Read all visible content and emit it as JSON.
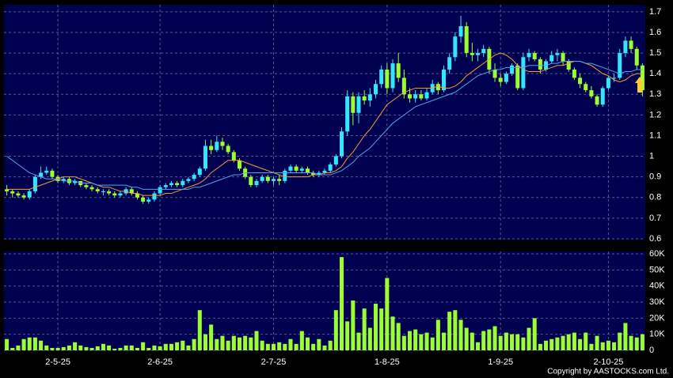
{
  "chart_data": {
    "type": "candlestick",
    "up_color": "#33e6ff",
    "down_color": "#99ff33",
    "volume_color": "#99ff33",
    "panel_color": "#000050",
    "grid": true,
    "xlim": [
      -0.5,
      112.5
    ],
    "xticks": [
      {
        "value": 9,
        "label": "2-5-25"
      },
      {
        "value": 27,
        "label": "2-6-25"
      },
      {
        "value": 47,
        "label": "2-7-25"
      },
      {
        "value": 67,
        "label": "1-8-25"
      },
      {
        "value": 87,
        "label": "1-9-25"
      },
      {
        "value": 106,
        "label": "2-10-25"
      }
    ],
    "ylim": [
      0.596,
      1.734
    ],
    "yticks": [
      0.6,
      0.7,
      0.8,
      0.9,
      1,
      1.1,
      1.2,
      1.3,
      1.4,
      1.5,
      1.6,
      1.7
    ],
    "y2lim": [
      0,
      61500
    ],
    "y2ticks": [
      0,
      {
        "value": 10000,
        "label": "10K"
      },
      {
        "value": 20000,
        "label": "20K"
      },
      {
        "value": 30000,
        "label": "30K"
      },
      {
        "value": 40000,
        "label": "40K"
      },
      {
        "value": 50000,
        "label": "50K"
      },
      {
        "value": 60000,
        "label": "60K"
      }
    ],
    "ohlc": [
      [
        0.84,
        0.86,
        0.81,
        0.83
      ],
      [
        0.83,
        0.84,
        0.8,
        0.82
      ],
      [
        0.82,
        0.83,
        0.8,
        0.81
      ],
      [
        0.81,
        0.82,
        0.79,
        0.8
      ],
      [
        0.8,
        0.84,
        0.79,
        0.83
      ],
      [
        0.83,
        0.91,
        0.82,
        0.9
      ],
      [
        0.9,
        0.95,
        0.89,
        0.92
      ],
      [
        0.92,
        0.95,
        0.91,
        0.93
      ],
      [
        0.93,
        0.94,
        0.89,
        0.9
      ],
      [
        0.9,
        0.91,
        0.87,
        0.88
      ],
      [
        0.88,
        0.9,
        0.87,
        0.89
      ],
      [
        0.89,
        0.9,
        0.86,
        0.87
      ],
      [
        0.87,
        0.89,
        0.86,
        0.88
      ],
      [
        0.88,
        0.88,
        0.85,
        0.86
      ],
      [
        0.86,
        0.87,
        0.84,
        0.85
      ],
      [
        0.85,
        0.86,
        0.83,
        0.84
      ],
      [
        0.84,
        0.85,
        0.82,
        0.83
      ],
      [
        0.83,
        0.84,
        0.81,
        0.83
      ],
      [
        0.83,
        0.84,
        0.81,
        0.82
      ],
      [
        0.82,
        0.83,
        0.8,
        0.81
      ],
      [
        0.81,
        0.83,
        0.8,
        0.82
      ],
      [
        0.82,
        0.85,
        0.81,
        0.84
      ],
      [
        0.84,
        0.85,
        0.81,
        0.82
      ],
      [
        0.82,
        0.83,
        0.79,
        0.8
      ],
      [
        0.8,
        0.81,
        0.77,
        0.78
      ],
      [
        0.78,
        0.8,
        0.77,
        0.79
      ],
      [
        0.79,
        0.83,
        0.78,
        0.82
      ],
      [
        0.82,
        0.86,
        0.81,
        0.85
      ],
      [
        0.85,
        0.87,
        0.84,
        0.86
      ],
      [
        0.86,
        0.88,
        0.85,
        0.87
      ],
      [
        0.87,
        0.88,
        0.85,
        0.86
      ],
      [
        0.86,
        0.89,
        0.85,
        0.88
      ],
      [
        0.88,
        0.9,
        0.87,
        0.89
      ],
      [
        0.89,
        0.92,
        0.88,
        0.91
      ],
      [
        0.91,
        0.95,
        0.9,
        0.94
      ],
      [
        0.94,
        1.08,
        0.93,
        1.05
      ],
      [
        1.05,
        1.08,
        1.01,
        1.03
      ],
      [
        1.03,
        1.1,
        1.02,
        1.07
      ],
      [
        1.07,
        1.09,
        1.03,
        1.05
      ],
      [
        1.05,
        1.06,
        1.01,
        1.02
      ],
      [
        1.02,
        1.03,
        0.97,
        0.98
      ],
      [
        0.98,
        0.99,
        0.93,
        0.94
      ],
      [
        0.94,
        0.95,
        0.89,
        0.9
      ],
      [
        0.9,
        0.91,
        0.85,
        0.86
      ],
      [
        0.86,
        0.89,
        0.85,
        0.88
      ],
      [
        0.88,
        0.91,
        0.87,
        0.9
      ],
      [
        0.9,
        0.91,
        0.87,
        0.88
      ],
      [
        0.88,
        0.9,
        0.86,
        0.89
      ],
      [
        0.89,
        0.91,
        0.86,
        0.88
      ],
      [
        0.88,
        0.94,
        0.87,
        0.93
      ],
      [
        0.93,
        0.96,
        0.92,
        0.95
      ],
      [
        0.95,
        0.96,
        0.92,
        0.93
      ],
      [
        0.93,
        0.95,
        0.92,
        0.94
      ],
      [
        0.94,
        0.95,
        0.91,
        0.92
      ],
      [
        0.92,
        0.93,
        0.9,
        0.91
      ],
      [
        0.91,
        0.93,
        0.9,
        0.92
      ],
      [
        0.92,
        0.94,
        0.91,
        0.93
      ],
      [
        0.93,
        0.97,
        0.92,
        0.96
      ],
      [
        0.96,
        1.01,
        0.95,
        1.0
      ],
      [
        1.0,
        1.14,
        0.99,
        1.12
      ],
      [
        1.12,
        1.32,
        1.1,
        1.29
      ],
      [
        1.29,
        1.31,
        1.15,
        1.21
      ],
      [
        1.21,
        1.31,
        1.16,
        1.29
      ],
      [
        1.29,
        1.32,
        1.25,
        1.27
      ],
      [
        1.27,
        1.33,
        1.24,
        1.3
      ],
      [
        1.3,
        1.37,
        1.28,
        1.35
      ],
      [
        1.35,
        1.44,
        1.33,
        1.42
      ],
      [
        1.42,
        1.45,
        1.3,
        1.33
      ],
      [
        1.33,
        1.47,
        1.31,
        1.45
      ],
      [
        1.45,
        1.5,
        1.36,
        1.38
      ],
      [
        1.38,
        1.42,
        1.28,
        1.3
      ],
      [
        1.3,
        1.33,
        1.26,
        1.28
      ],
      [
        1.28,
        1.32,
        1.26,
        1.3
      ],
      [
        1.3,
        1.32,
        1.27,
        1.28
      ],
      [
        1.28,
        1.33,
        1.27,
        1.31
      ],
      [
        1.31,
        1.37,
        1.3,
        1.35
      ],
      [
        1.35,
        1.36,
        1.3,
        1.32
      ],
      [
        1.32,
        1.44,
        1.31,
        1.42
      ],
      [
        1.42,
        1.5,
        1.4,
        1.48
      ],
      [
        1.48,
        1.6,
        1.46,
        1.58
      ],
      [
        1.58,
        1.68,
        1.55,
        1.63
      ],
      [
        1.63,
        1.65,
        1.48,
        1.5
      ],
      [
        1.5,
        1.55,
        1.46,
        1.49
      ],
      [
        1.49,
        1.52,
        1.46,
        1.5
      ],
      [
        1.5,
        1.54,
        1.48,
        1.52
      ],
      [
        1.52,
        1.53,
        1.4,
        1.42
      ],
      [
        1.42,
        1.45,
        1.36,
        1.38
      ],
      [
        1.38,
        1.4,
        1.34,
        1.36
      ],
      [
        1.36,
        1.41,
        1.35,
        1.4
      ],
      [
        1.4,
        1.45,
        1.39,
        1.44
      ],
      [
        1.44,
        1.45,
        1.32,
        1.33
      ],
      [
        1.33,
        1.5,
        1.32,
        1.48
      ],
      [
        1.48,
        1.52,
        1.46,
        1.5
      ],
      [
        1.5,
        1.51,
        1.46,
        1.47
      ],
      [
        1.47,
        1.48,
        1.4,
        1.42
      ],
      [
        1.42,
        1.47,
        1.41,
        1.46
      ],
      [
        1.46,
        1.51,
        1.45,
        1.49
      ],
      [
        1.49,
        1.52,
        1.46,
        1.5
      ],
      [
        1.5,
        1.51,
        1.44,
        1.46
      ],
      [
        1.46,
        1.47,
        1.41,
        1.42
      ],
      [
        1.42,
        1.43,
        1.37,
        1.38
      ],
      [
        1.38,
        1.4,
        1.33,
        1.35
      ],
      [
        1.35,
        1.36,
        1.31,
        1.32
      ],
      [
        1.32,
        1.34,
        1.28,
        1.29
      ],
      [
        1.29,
        1.3,
        1.24,
        1.25
      ],
      [
        1.25,
        1.34,
        1.24,
        1.33
      ],
      [
        1.33,
        1.39,
        1.32,
        1.38
      ],
      [
        1.38,
        1.4,
        1.36,
        1.38
      ],
      [
        1.38,
        1.52,
        1.37,
        1.5
      ],
      [
        1.5,
        1.58,
        1.48,
        1.56
      ],
      [
        1.56,
        1.58,
        1.5,
        1.52
      ],
      [
        1.52,
        1.53,
        1.42,
        1.44
      ],
      [
        1.44,
        1.45,
        1.29,
        1.32
      ]
    ],
    "volume": [
      7000,
      1500,
      3000,
      7000,
      8000,
      8000,
      6000,
      3000,
      1500,
      1500,
      2000,
      3000,
      5000,
      3000,
      2000,
      1500,
      2500,
      4000,
      3000,
      1000,
      1500,
      3000,
      3000,
      1500,
      5000,
      1500,
      3000,
      2500,
      4000,
      4000,
      5000,
      6000,
      3000,
      7000,
      25000,
      10000,
      16000,
      7000,
      9000,
      6000,
      9000,
      8000,
      9000,
      8000,
      12000,
      6000,
      4000,
      4000,
      5000,
      4000,
      7000,
      4000,
      12000,
      8000,
      4000,
      7000,
      3000,
      6000,
      25000,
      58000,
      18000,
      31000,
      11000,
      26000,
      14000,
      29000,
      26000,
      45000,
      21000,
      17000,
      9000,
      12000,
      13000,
      10000,
      11000,
      8000,
      19000,
      11000,
      24000,
      25000,
      19000,
      14000,
      11000,
      5000,
      12000,
      13000,
      15000,
      9000,
      11000,
      10000,
      10000,
      8000,
      14000,
      20000,
      4000,
      6000,
      7000,
      8000,
      9000,
      10000,
      11000,
      7000,
      11000,
      4000,
      9000,
      5000,
      6000,
      5000,
      11000,
      17000,
      9000,
      8000,
      10000
    ],
    "lines": [
      {
        "color": "#ff9933",
        "values": [
          0.84,
          0.84,
          0.84,
          0.84,
          0.84,
          0.85,
          0.86,
          0.87,
          0.88,
          0.89,
          0.9,
          0.9,
          0.9,
          0.89,
          0.88,
          0.87,
          0.86,
          0.85,
          0.85,
          0.84,
          0.83,
          0.83,
          0.82,
          0.82,
          0.81,
          0.81,
          0.81,
          0.81,
          0.82,
          0.82,
          0.83,
          0.84,
          0.85,
          0.86,
          0.87,
          0.89,
          0.92,
          0.94,
          0.96,
          0.98,
          0.98,
          0.98,
          0.97,
          0.96,
          0.95,
          0.94,
          0.93,
          0.92,
          0.91,
          0.9,
          0.9,
          0.9,
          0.9,
          0.9,
          0.91,
          0.91,
          0.92,
          0.92,
          0.93,
          0.95,
          0.99,
          1.02,
          1.06,
          1.1,
          1.13,
          1.17,
          1.21,
          1.25,
          1.27,
          1.29,
          1.31,
          1.32,
          1.33,
          1.33,
          1.33,
          1.33,
          1.34,
          1.33,
          1.33,
          1.34,
          1.36,
          1.39,
          1.41,
          1.43,
          1.45,
          1.47,
          1.49,
          1.5,
          1.49,
          1.47,
          1.44,
          1.42,
          1.41,
          1.41,
          1.41,
          1.42,
          1.43,
          1.44,
          1.44,
          1.45,
          1.46,
          1.46,
          1.45,
          1.44,
          1.42,
          1.4,
          1.39,
          1.37,
          1.36,
          1.37,
          1.39,
          1.4,
          1.4
        ]
      },
      {
        "color": "#4fa8ee",
        "values": [
          1.0,
          0.98,
          0.96,
          0.94,
          0.92,
          0.91,
          0.9,
          0.89,
          0.89,
          0.89,
          0.88,
          0.88,
          0.88,
          0.87,
          0.87,
          0.87,
          0.86,
          0.86,
          0.86,
          0.86,
          0.86,
          0.86,
          0.85,
          0.85,
          0.84,
          0.84,
          0.84,
          0.84,
          0.84,
          0.84,
          0.84,
          0.84,
          0.84,
          0.85,
          0.85,
          0.86,
          0.87,
          0.88,
          0.89,
          0.9,
          0.91,
          0.91,
          0.92,
          0.92,
          0.92,
          0.92,
          0.92,
          0.92,
          0.92,
          0.92,
          0.92,
          0.92,
          0.92,
          0.92,
          0.92,
          0.91,
          0.91,
          0.91,
          0.92,
          0.93,
          0.95,
          0.97,
          1.0,
          1.02,
          1.04,
          1.07,
          1.1,
          1.13,
          1.16,
          1.18,
          1.2,
          1.22,
          1.24,
          1.25,
          1.26,
          1.27,
          1.28,
          1.29,
          1.3,
          1.31,
          1.33,
          1.35,
          1.37,
          1.39,
          1.4,
          1.41,
          1.42,
          1.42,
          1.43,
          1.43,
          1.43,
          1.43,
          1.44,
          1.44,
          1.44,
          1.44,
          1.45,
          1.45,
          1.46,
          1.46,
          1.46,
          1.46,
          1.45,
          1.45,
          1.44,
          1.43,
          1.42,
          1.41,
          1.4,
          1.41,
          1.41,
          1.42,
          1.42
        ]
      }
    ],
    "copyright": "Copyright by AASTOCKS.com Ltd."
  }
}
